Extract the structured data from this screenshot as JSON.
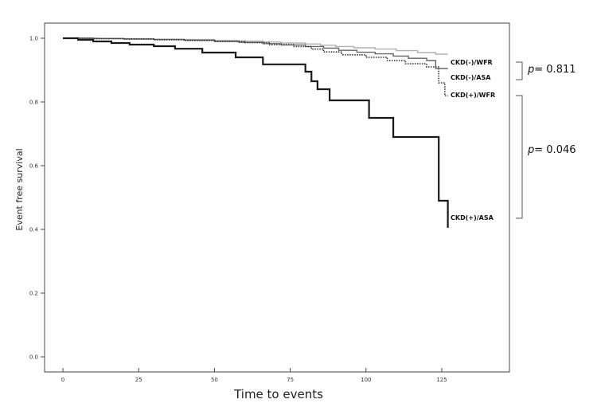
{
  "chart_data": {
    "type": "line",
    "xlabel": "Time to events",
    "ylabel": "Event free survival",
    "xlim": [
      0,
      137
    ],
    "ylim": [
      0,
      1.04
    ],
    "x_ticks": [
      0,
      25,
      50,
      75,
      100,
      125
    ],
    "x_tick_labels": [
      "0",
      "25",
      "50",
      "75",
      "100",
      "125"
    ],
    "y_ticks": [
      0.0,
      0.2,
      0.4,
      0.6,
      0.8,
      1.0
    ],
    "y_tick_labels": [
      "0.0",
      "0.2",
      "0.4",
      "0.6",
      "0.8",
      "1.0"
    ],
    "grid": false,
    "series": [
      {
        "name": "CKD(-)/WFR",
        "step": true,
        "color": "#b0b0b0",
        "dash": "solid",
        "x": [
          0,
          12,
          22,
          30,
          40,
          50,
          58,
          66,
          72,
          80,
          85,
          90,
          96,
          103,
          110,
          117,
          123,
          127
        ],
        "y": [
          1.0,
          0.999,
          0.998,
          0.997,
          0.996,
          0.993,
          0.991,
          0.988,
          0.985,
          0.982,
          0.978,
          0.974,
          0.97,
          0.966,
          0.961,
          0.955,
          0.95,
          0.95
        ]
      },
      {
        "name": "CKD(-)/ASA",
        "step": true,
        "color": "#666666",
        "dash": "solid",
        "x": [
          0,
          10,
          20,
          30,
          40,
          50,
          58,
          66,
          72,
          80,
          86,
          91,
          97,
          103,
          109,
          114,
          120,
          123,
          127
        ],
        "y": [
          1.0,
          0.999,
          0.998,
          0.996,
          0.994,
          0.99,
          0.987,
          0.983,
          0.979,
          0.974,
          0.969,
          0.962,
          0.956,
          0.951,
          0.944,
          0.937,
          0.93,
          0.905,
          0.905
        ]
      },
      {
        "name": "CKD(+)/WFR",
        "step": true,
        "color": "#333333",
        "dash": "dotted",
        "x": [
          0,
          10,
          20,
          30,
          40,
          50,
          60,
          68,
          76,
          82,
          86,
          92,
          100,
          107,
          113,
          120,
          124,
          126,
          127
        ],
        "y": [
          1.0,
          0.999,
          0.997,
          0.995,
          0.993,
          0.99,
          0.986,
          0.98,
          0.974,
          0.966,
          0.957,
          0.948,
          0.94,
          0.93,
          0.92,
          0.91,
          0.86,
          0.82,
          0.82
        ]
      },
      {
        "name": "CKD(+)/ASA",
        "step": true,
        "color": "#1a1a1a",
        "dash": "solid",
        "x": [
          0,
          5,
          10,
          16,
          22,
          30,
          37,
          46,
          57,
          66,
          80,
          82,
          84,
          88,
          101,
          109,
          124,
          127
        ],
        "y": [
          1.0,
          0.995,
          0.99,
          0.985,
          0.98,
          0.975,
          0.967,
          0.955,
          0.94,
          0.918,
          0.895,
          0.865,
          0.84,
          0.805,
          0.75,
          0.69,
          0.49,
          0.405
        ]
      }
    ],
    "annotations": [
      {
        "text": "= 0.811",
        "prefix": "p",
        "groups": [
          "CKD(-)/WFR",
          "CKD(-)/ASA"
        ]
      },
      {
        "text": "= 0.046",
        "prefix": "p",
        "groups": [
          "CKD(+)/WFR",
          "CKD(+)/ASA"
        ]
      }
    ]
  }
}
